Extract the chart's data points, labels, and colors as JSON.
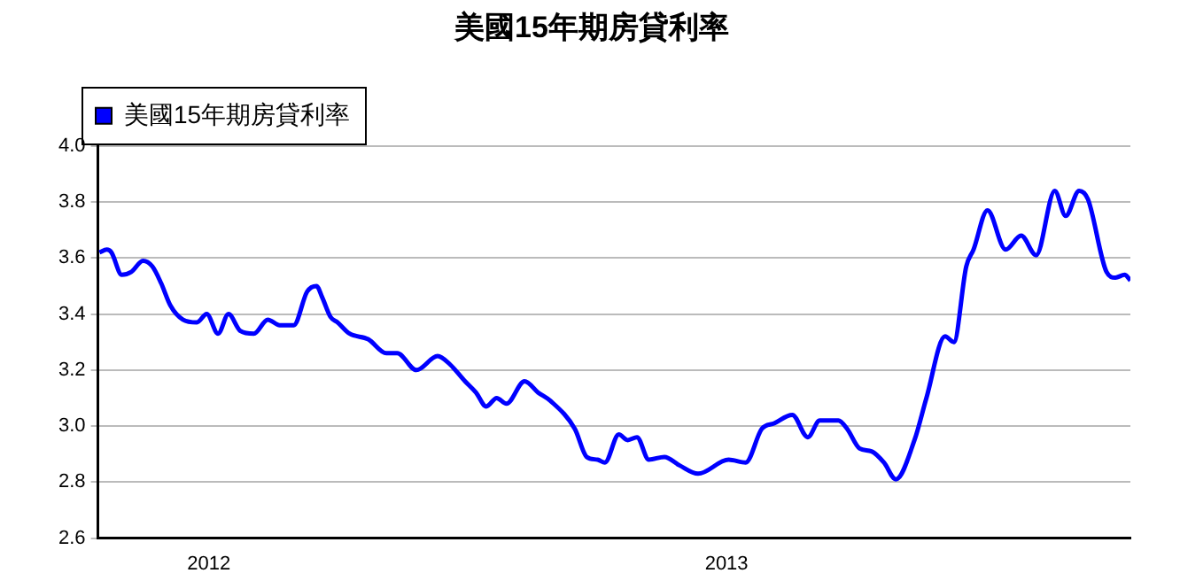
{
  "chart_data": {
    "type": "line",
    "title": "美國15年期房貸利率",
    "legend": "top left",
    "grid": "y",
    "marker": "none",
    "line_style": "solid",
    "x": [
      2011.789,
      2011.803,
      2011.812,
      2011.832,
      2011.85,
      2011.873,
      2011.891,
      2011.908,
      2011.926,
      2011.95,
      2011.977,
      2011.996,
      2012.018,
      2012.038,
      2012.061,
      2012.087,
      2012.114,
      2012.137,
      2012.149,
      2012.164,
      2012.19,
      2012.208,
      2012.219,
      2012.235,
      2012.249,
      2012.272,
      2012.308,
      2012.343,
      2012.364,
      2012.401,
      2012.442,
      2012.466,
      2012.495,
      2012.516,
      2012.536,
      2012.556,
      2012.575,
      2012.61,
      2012.636,
      2012.66,
      2012.707,
      2012.73,
      2012.751,
      2012.765,
      2012.792,
      2012.809,
      2012.827,
      2012.85,
      2012.88,
      2012.909,
      2012.945,
      2013.004,
      2013.037,
      2013.068,
      2013.092,
      2013.127,
      2013.157,
      2013.18,
      2013.216,
      2013.233,
      2013.257,
      2013.28,
      2013.304,
      2013.327,
      2013.363,
      2013.386,
      2013.422,
      2013.439,
      2013.463,
      2013.477,
      2013.504,
      2013.539,
      2013.569,
      2013.598,
      2013.634,
      2013.655,
      2013.681,
      2013.698,
      2013.734,
      2013.751,
      2013.769,
      2013.78
    ],
    "series": [
      {
        "name": "美國15年期房貸利率",
        "color": "#0000ff",
        "values": [
          3.62,
          3.63,
          3.62,
          3.54,
          3.55,
          3.59,
          3.57,
          3.51,
          3.43,
          3.38,
          3.37,
          3.4,
          3.33,
          3.4,
          3.34,
          3.33,
          3.38,
          3.36,
          3.36,
          3.36,
          3.48,
          3.5,
          3.46,
          3.39,
          3.37,
          3.33,
          3.31,
          3.26,
          3.26,
          3.2,
          3.25,
          3.22,
          3.16,
          3.12,
          3.07,
          3.1,
          3.08,
          3.16,
          3.12,
          3.09,
          2.99,
          2.89,
          2.88,
          2.87,
          2.97,
          2.95,
          2.96,
          2.88,
          2.89,
          2.86,
          2.83,
          2.88,
          2.87,
          2.99,
          3.01,
          3.04,
          2.96,
          3.02,
          3.02,
          2.99,
          2.92,
          2.91,
          2.87,
          2.81,
          2.95,
          3.1,
          3.32,
          3.3,
          3.57,
          3.63,
          3.77,
          3.63,
          3.68,
          3.61,
          3.84,
          3.75,
          3.84,
          3.81,
          3.55,
          3.53,
          3.54,
          3.52
        ]
      }
    ],
    "xlim": [
      2011.786,
      2013.78
    ],
    "xticks": [
      2012,
      2013
    ],
    "ylim": [
      2.6,
      4.0
    ],
    "yticks": [
      {
        "value": 2.6,
        "label": "2.6"
      },
      {
        "value": 2.8,
        "label": "2.8"
      },
      {
        "value": 3,
        "label": "3.0"
      },
      {
        "value": 3.2,
        "label": "3.2"
      },
      {
        "value": 3.4,
        "label": "3.4"
      },
      {
        "value": 3.6,
        "label": "3.6"
      },
      {
        "value": 3.8,
        "label": "3.8"
      },
      {
        "value": 4,
        "label": "4.0"
      }
    ]
  }
}
